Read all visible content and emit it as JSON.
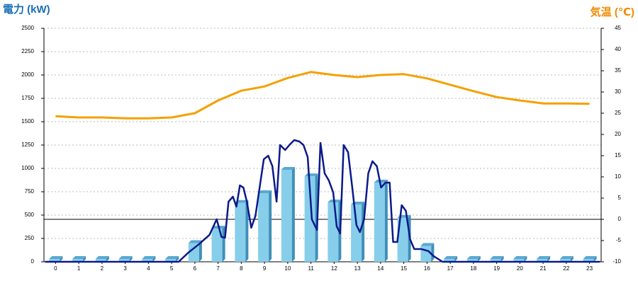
{
  "chart_data": {
    "type": "bar",
    "y_label": "電力 (kW)",
    "y2_label": "気温 (℃)",
    "categories": [
      "0",
      "1",
      "2",
      "3",
      "4",
      "5",
      "6",
      "7",
      "8",
      "9",
      "10",
      "11",
      "12",
      "13",
      "14",
      "15",
      "16",
      "17",
      "18",
      "19",
      "20",
      "21",
      "22",
      "23"
    ],
    "ylim": [
      0,
      2500
    ],
    "yticks": [
      0,
      250,
      500,
      750,
      1000,
      1250,
      1500,
      1750,
      2000,
      2250,
      2500
    ],
    "y2lim": [
      -10,
      45
    ],
    "y2ticks": [
      -10,
      -5,
      0,
      5,
      10,
      15,
      20,
      25,
      30,
      35,
      40,
      45
    ],
    "grid": true,
    "series": [
      {
        "type": "bar",
        "color": "#87ceeb",
        "values": [
          0,
          0,
          0,
          0,
          0,
          0,
          170,
          325,
          600,
          705,
          955,
          885,
          605,
          583,
          818,
          440,
          140,
          0,
          0,
          0,
          0,
          0,
          0,
          0
        ]
      },
      {
        "type": "line",
        "color": "#0a1a8a",
        "x": [
          -0.45,
          5.3,
          5.72,
          6.18,
          6.63,
          6.94,
          7.15,
          7.3,
          7.45,
          7.64,
          7.79,
          7.94,
          8.09,
          8.24,
          8.43,
          8.61,
          8.79,
          8.97,
          9.16,
          9.34,
          9.52,
          9.67,
          9.89,
          10.07,
          10.28,
          10.5,
          10.68,
          10.86,
          11.04,
          11.26,
          11.41,
          11.59,
          11.77,
          11.96,
          12.11,
          12.26,
          12.41,
          12.6,
          12.78,
          12.96,
          13.11,
          13.29,
          13.47,
          13.65,
          13.84,
          14.02,
          14.21,
          14.39,
          14.54,
          14.72,
          14.91,
          15.09,
          15.27,
          15.45,
          15.76,
          16.06,
          16.28,
          16.67,
          23.45
        ],
        "values": [
          0,
          0,
          98,
          189,
          288,
          455,
          265,
          258,
          644,
          697,
          591,
          818,
          795,
          644,
          364,
          492,
          795,
          1098,
          1136,
          1023,
          644,
          1250,
          1197,
          1250,
          1303,
          1288,
          1250,
          1121,
          455,
          341,
          1273,
          947,
          871,
          742,
          379,
          303,
          1250,
          1174,
          795,
          394,
          318,
          455,
          947,
          1076,
          1023,
          795,
          848,
          848,
          212,
          212,
          606,
          545,
          242,
          136,
          136,
          114,
          61,
          0,
          0
        ]
      },
      {
        "type": "line",
        "axis": "y2",
        "color": "#f5a000",
        "values": [
          24.3,
          24,
          24,
          23.8,
          23.8,
          24,
          25,
          28,
          30.3,
          31.3,
          33.3,
          34.7,
          34,
          33.5,
          34,
          34.2,
          33.2,
          31.7,
          30.2,
          28.8,
          28,
          27.3,
          27.3,
          27.2
        ]
      }
    ]
  }
}
